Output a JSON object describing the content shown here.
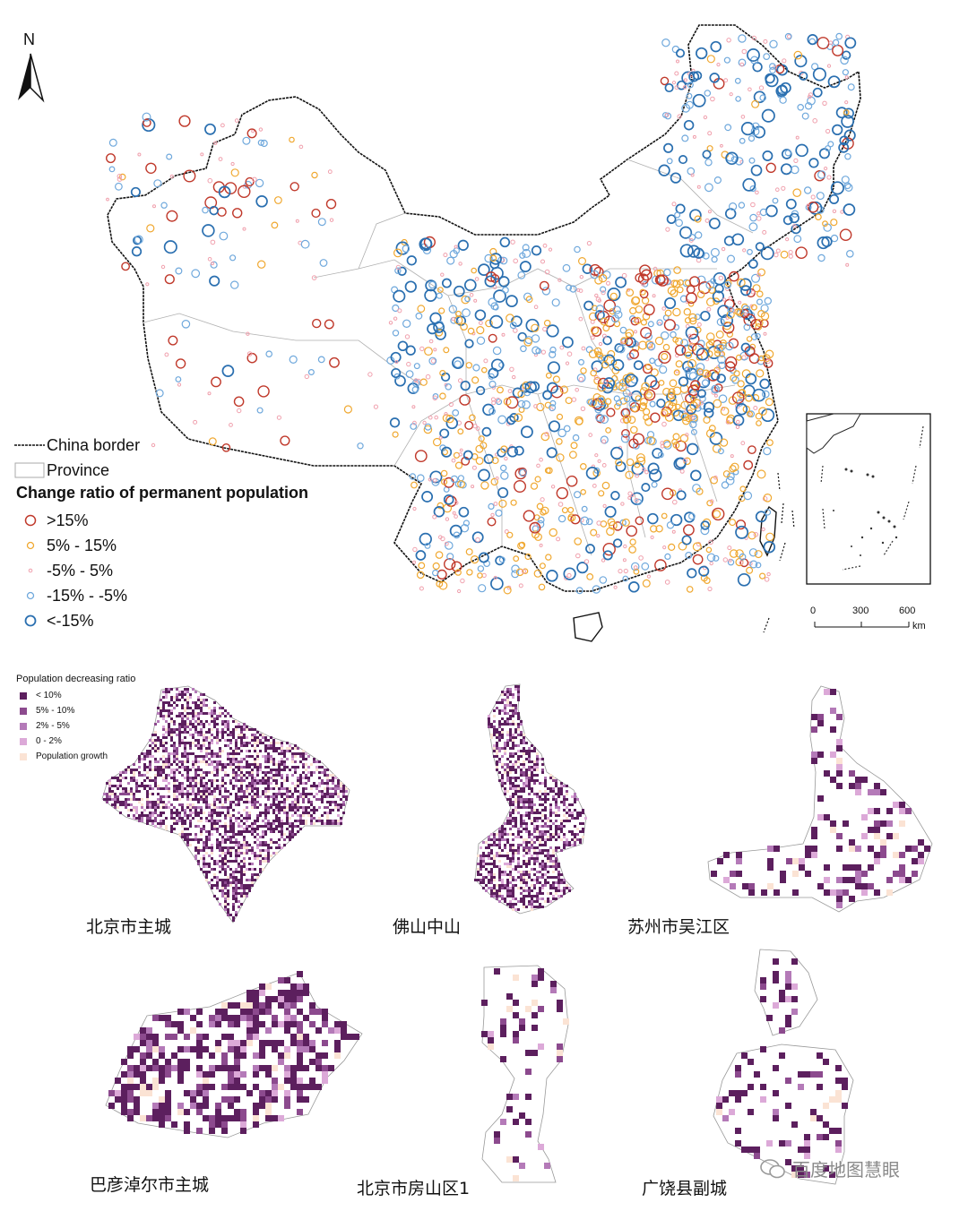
{
  "north_arrow": {
    "label": "N"
  },
  "top_legend": {
    "border_label": "China border",
    "province_label": "Province",
    "title": "Change ratio of permanent population",
    "classes": [
      {
        "label": ">15%",
        "color": "#c0392b"
      },
      {
        "label": "5% - 15%",
        "color": "#f0a830"
      },
      {
        "label": "-5% - 5%",
        "color": "#f0a0ad"
      },
      {
        "label": "-15% - -5%",
        "color": "#6fa8dc"
      },
      {
        "label": "<-15%",
        "color": "#2a6fb0"
      }
    ]
  },
  "scale_bar": {
    "ticks": [
      "0",
      "300",
      "600"
    ],
    "unit": "km"
  },
  "bottom_legend": {
    "title": "Population decreasing ratio",
    "classes": [
      {
        "label": "< 10%",
        "color": "#5c1f5e"
      },
      {
        "label": "5% - 10%",
        "color": "#8c4a8e"
      },
      {
        "label": "2% - 5%",
        "color": "#b47ab8"
      },
      {
        "label": "0 - 2%",
        "color": "#dca9d8"
      },
      {
        "label": "Population growth",
        "color": "#fbe3d4"
      }
    ]
  },
  "cities": [
    {
      "label": "北京市主城"
    },
    {
      "label": "佛山中山"
    },
    {
      "label": "苏州市吴江区"
    },
    {
      "label": "巴彦淖尔市主城"
    },
    {
      "label": "北京市房山区1"
    },
    {
      "label": "广饶县副城"
    }
  ],
  "watermark": {
    "text": "百度地图慧眼"
  }
}
